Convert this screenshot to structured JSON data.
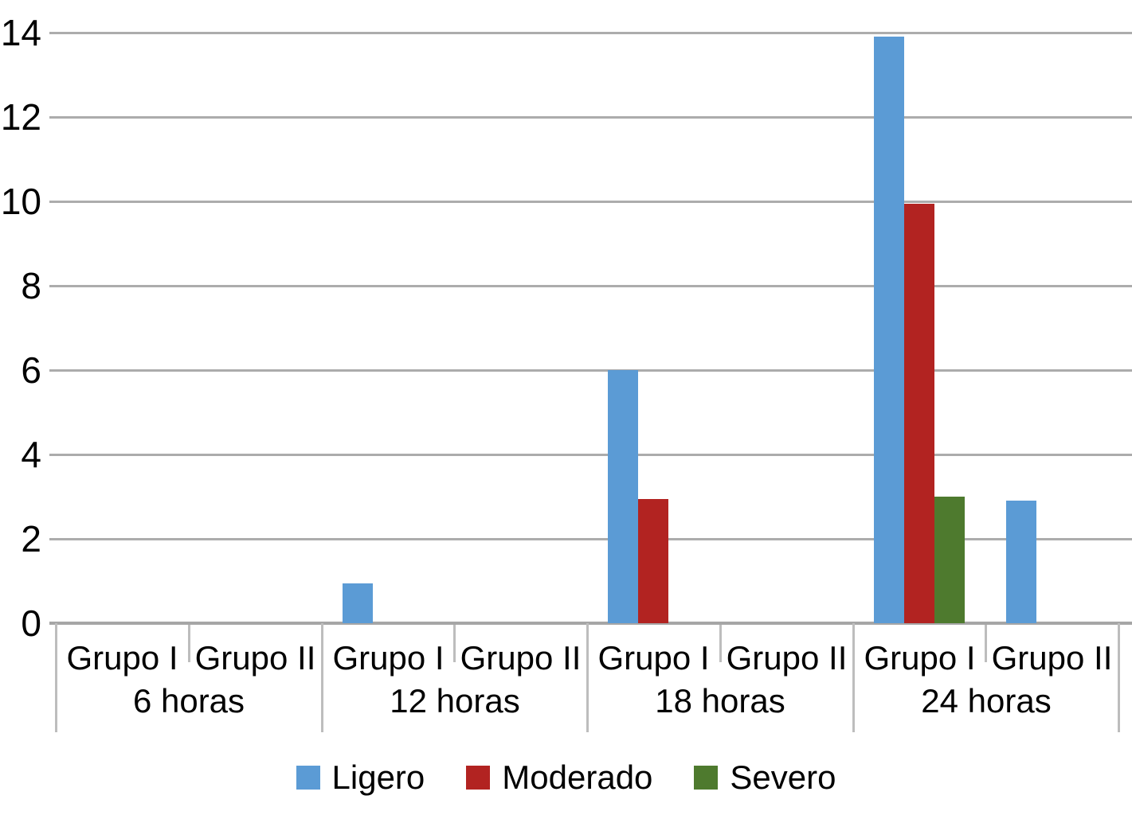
{
  "chart_data": {
    "type": "bar",
    "title": "",
    "xlabel": "",
    "ylabel": "",
    "categories": [
      "6 horas",
      "12 horas",
      "18 horas",
      "24 horas"
    ],
    "subcategories": [
      "Grupo I",
      "Grupo II"
    ],
    "series": [
      {
        "name": "Ligero",
        "color": "#5B9BD5",
        "values": [
          [
            0,
            0
          ],
          [
            0.95,
            0
          ],
          [
            6,
            0
          ],
          [
            13.9,
            2.9
          ]
        ]
      },
      {
        "name": "Moderado",
        "color": "#B22321",
        "values": [
          [
            0,
            0
          ],
          [
            0,
            0
          ],
          [
            2.95,
            0
          ],
          [
            9.95,
            0
          ]
        ]
      },
      {
        "name": "Severo",
        "color": "#4E7A2E",
        "values": [
          [
            0,
            0
          ],
          [
            0,
            0
          ],
          [
            0,
            0
          ],
          [
            3,
            0
          ]
        ]
      }
    ],
    "y_axis": {
      "min": 0,
      "max": 14,
      "tick_step": 2,
      "tick_labels": [
        "0",
        "2",
        "4",
        "6",
        "8",
        "10",
        "12",
        "14"
      ]
    },
    "grid": true,
    "legend_position": "bottom",
    "colors": {
      "gridline": "#ACACAC",
      "axis_line": "#A6A6A6",
      "separator": "#BDBDBD",
      "text": "#000000",
      "background": "#FFFFFF"
    }
  }
}
